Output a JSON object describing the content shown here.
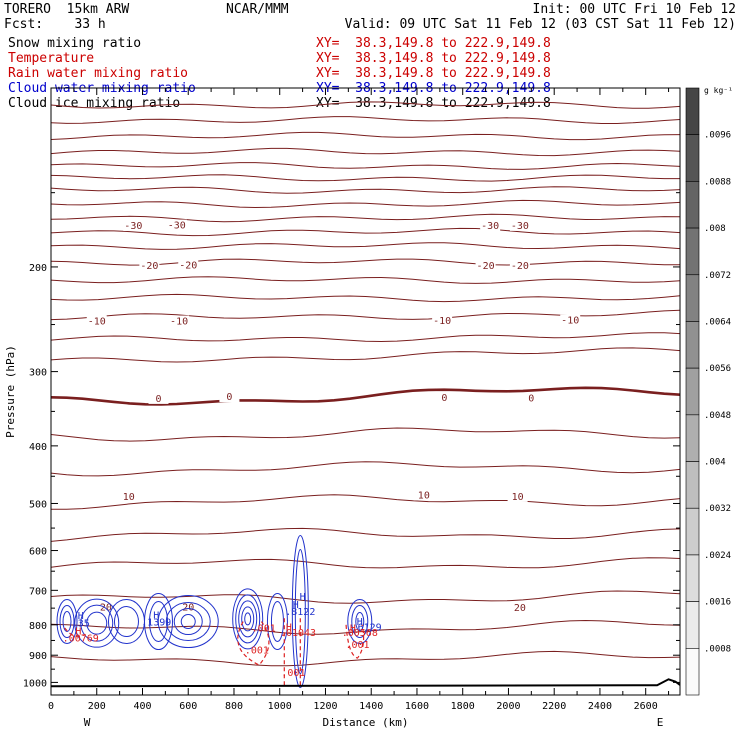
{
  "header": {
    "model": "TORERO  15km ARW",
    "center": "NCAR/MMM",
    "init": "Init: 00 UTC Fri 10 Feb 12",
    "fcst": "Fcst:    33 h",
    "valid": "Valid: 09 UTC Sat 11 Feb 12 (03 CST Sat 11 Feb 12)"
  },
  "fields": [
    {
      "label": "Snow mixing ratio",
      "xy": "XY=  38.3,149.8 to 222.9,149.8",
      "label_color": "#000000",
      "xy_color": "#cc0000"
    },
    {
      "label": "Temperature",
      "xy": "XY=  38.3,149.8 to 222.9,149.8",
      "label_color": "#cc0000",
      "xy_color": "#cc0000"
    },
    {
      "label": "Rain water mixing ratio",
      "xy": "XY=  38.3,149.8 to 222.9,149.8",
      "label_color": "#cc0000",
      "xy_color": "#cc0000"
    },
    {
      "label": "Cloud water mixing ratio",
      "xy": "XY=  38.3,149.8 to 222.9,149.8",
      "label_color": "#0000cc",
      "xy_color": "#0000cc"
    },
    {
      "label": "Cloud ice mixing ratio",
      "xy": "XY=  38.3,149.8 to 222.9,149.8",
      "label_color": "#000000",
      "xy_color": "#000000"
    }
  ],
  "colors": {
    "temperature": "#7a1f1f",
    "rain": "#dd2222",
    "cloud_water": "#2233cc",
    "cloud_ice": "#555555",
    "terrain": "#000000"
  },
  "chart_data": {
    "type": "line",
    "xlabel": "Distance (km)",
    "ylabel": "Pressure (hPa)",
    "x_ticks": [
      0,
      200,
      400,
      600,
      800,
      1000,
      1200,
      1400,
      1600,
      1800,
      2000,
      2200,
      2400,
      2600
    ],
    "y_ticks": [
      200,
      300,
      400,
      500,
      600,
      700,
      800,
      900,
      1000
    ],
    "xlim": [
      0,
      2750
    ],
    "ylim": [
      1050,
      100
    ],
    "y_scale": "log",
    "x_end_labels": {
      "left": "W",
      "right": "E"
    },
    "temperature_contours": [
      {
        "level": "-30",
        "labels": [
          {
            "x": 360,
            "text": "-30"
          },
          {
            "x": 550,
            "text": "-30"
          },
          {
            "x": 1920,
            "text": "-30"
          },
          {
            "x": 2050,
            "text": "-30"
          }
        ]
      },
      {
        "level": "-20",
        "labels": [
          {
            "x": 430,
            "text": "-20"
          },
          {
            "x": 600,
            "text": "-20"
          },
          {
            "x": 1900,
            "text": "-20"
          },
          {
            "x": 2050,
            "text": "-20"
          }
        ]
      },
      {
        "level": "-10",
        "labels": [
          {
            "x": 200,
            "text": "-10"
          },
          {
            "x": 560,
            "text": "-10"
          },
          {
            "x": 1710,
            "text": "-10"
          },
          {
            "x": 2270,
            "text": "-10"
          }
        ]
      },
      {
        "level": "0",
        "labels": [
          {
            "x": 470,
            "text": "0"
          },
          {
            "x": 780,
            "text": "0"
          },
          {
            "x": 1720,
            "text": "0"
          },
          {
            "x": 2100,
            "text": "0"
          }
        ]
      },
      {
        "level": "10",
        "labels": [
          {
            "x": 340,
            "text": "10"
          },
          {
            "x": 1630,
            "text": "10"
          },
          {
            "x": 2040,
            "text": "10"
          }
        ]
      },
      {
        "level": "20",
        "labels": [
          {
            "x": 240,
            "text": "20"
          },
          {
            "x": 600,
            "text": "20"
          },
          {
            "x": 2050,
            "text": "20"
          }
        ]
      }
    ],
    "annotations": [
      {
        "x": 130,
        "p": 770,
        "text": "H",
        "color": "#2233cc"
      },
      {
        "x": 130,
        "p": 793,
        "text": ".35",
        "color": "#2233cc"
      },
      {
        "x": 460,
        "p": 768,
        "text": "H",
        "color": "#2233cc"
      },
      {
        "x": 460,
        "p": 790,
        "text": ".1399",
        "color": "#2233cc"
      },
      {
        "x": 1100,
        "p": 716,
        "text": "H",
        "color": "#2233cc"
      },
      {
        "x": 1070,
        "p": 738,
        "text": "H",
        "color": "#2233cc"
      },
      {
        "x": 1090,
        "p": 758,
        "text": ".8122",
        "color": "#2233cc"
      },
      {
        "x": 1350,
        "p": 788,
        "text": "H",
        "color": "#2233cc"
      },
      {
        "x": 1380,
        "p": 806,
        "text": ".6129",
        "color": "#2233cc"
      },
      {
        "x": 120,
        "p": 818,
        "text": "H",
        "color": "#dd2222"
      },
      {
        "x": 130,
        "p": 840,
        "text": ".00769",
        "color": "#dd2222"
      },
      {
        "x": 930,
        "p": 808,
        "text": ".001",
        "color": "#dd2222"
      },
      {
        "x": 1040,
        "p": 806,
        "text": "H",
        "color": "#dd2222"
      },
      {
        "x": 1080,
        "p": 822,
        "text": ".01043",
        "color": "#dd2222"
      },
      {
        "x": 1320,
        "p": 808,
        "text": "H",
        "color": "#dd2222"
      },
      {
        "x": 1350,
        "p": 822,
        "text": ".00568",
        "color": "#dd2222"
      },
      {
        "x": 900,
        "p": 880,
        "text": ".001",
        "color": "#dd2222"
      },
      {
        "x": 1340,
        "p": 862,
        "text": ".001",
        "color": "#dd2222"
      },
      {
        "x": 1060,
        "p": 960,
        "text": ".001",
        "color": "#dd2222"
      }
    ],
    "colorbar": {
      "unit": "g kg⁻¹",
      "labels": [
        ".0096",
        ".0088",
        ".008",
        ".0072",
        ".0064",
        ".0056",
        ".0048",
        ".004",
        ".0032",
        ".0024",
        ".0016",
        ".0008"
      ]
    }
  }
}
